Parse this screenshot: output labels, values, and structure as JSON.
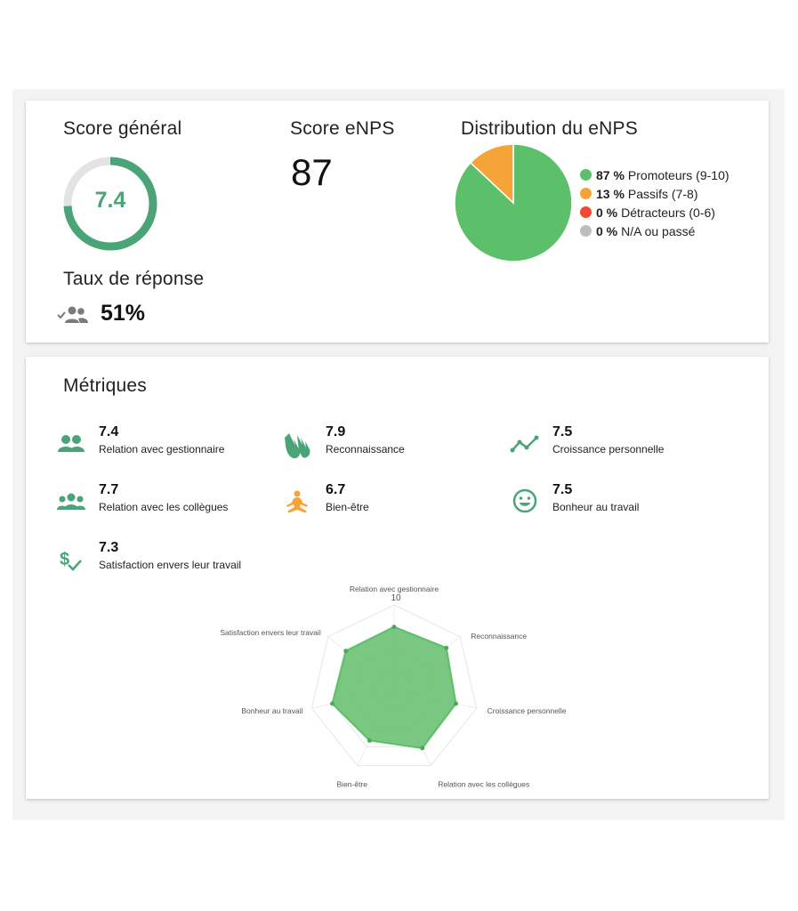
{
  "colors": {
    "green": "#5cbf6a",
    "teal_green": "#4aa477",
    "orange": "#f5a538",
    "red": "#f04a32",
    "gray": "#bdbdbd"
  },
  "summary": {
    "score_general_title": "Score général",
    "score_general_value": "7.4",
    "score_general_fraction": 0.74,
    "enps_title": "Score eNPS",
    "enps_value": "87",
    "distribution_title": "Distribution du eNPS",
    "response_title": "Taux de réponse",
    "response_value": "51%",
    "response_icon": "group-check-icon"
  },
  "chart_data": [
    {
      "type": "pie",
      "title": "Distribution du eNPS",
      "slices": [
        {
          "pct": "87 %",
          "label": "Promoteurs (9-10)",
          "value": 87,
          "color": "#5cbf6a"
        },
        {
          "pct": "13 %",
          "label": "Passifs (7-8)",
          "value": 13,
          "color": "#f5a538"
        },
        {
          "pct": "0 %",
          "label": "Détracteurs (0-6)",
          "value": 0,
          "color": "#f04a32"
        },
        {
          "pct": "0 %",
          "label": "N/A ou passé",
          "value": 0,
          "color": "#bdbdbd"
        }
      ]
    },
    {
      "type": "radar",
      "max": 10,
      "max_label": "10",
      "axes": [
        "Relation avec gestionnaire",
        "Reconnaissance",
        "Croissance personnelle",
        "Relation avec les collègues",
        "Bien-être",
        "Bonheur au travail",
        "Satisfaction envers leur travail"
      ],
      "values": [
        7.4,
        7.9,
        7.5,
        7.7,
        6.7,
        7.5,
        7.3
      ]
    }
  ],
  "metrics": {
    "title": "Métriques",
    "items": [
      {
        "value": "7.4",
        "label": "Relation avec gestionnaire",
        "icon": "people-pair-icon"
      },
      {
        "value": "7.9",
        "label": "Reconnaissance",
        "icon": "clapping-hands-icon"
      },
      {
        "value": "7.5",
        "label": "Croissance personnelle",
        "icon": "trend-line-icon"
      },
      {
        "value": "7.7",
        "label": "Relation avec les collègues",
        "icon": "people-group-icon"
      },
      {
        "value": "6.7",
        "label": "Bien-être",
        "icon": "meditation-icon"
      },
      {
        "value": "7.5",
        "label": "Bonheur au travail",
        "icon": "smiley-icon"
      },
      {
        "value": "7.3",
        "label": "Satisfaction envers leur travail",
        "icon": "dollar-check-icon"
      }
    ]
  }
}
